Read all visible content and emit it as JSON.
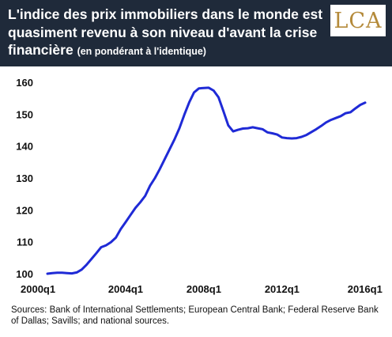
{
  "header": {
    "title": "L'indice des prix immobiliers dans le monde est quasiment revenu à son niveau d'avant la crise financière",
    "subtitle": "(en pondérant à l'identique)",
    "logo_text": "LCA",
    "background": "#1f2a3a"
  },
  "source_note": "Sources: Bank of International Settlements; European Central Bank; Federal Reserve Bank of Dallas; Savills; and national sources.",
  "chart_data": {
    "type": "line",
    "title": "",
    "xlabel": "",
    "ylabel": "",
    "ylim": [
      100,
      160
    ],
    "yticks": [
      100,
      110,
      120,
      130,
      140,
      150,
      160
    ],
    "xticks": [
      {
        "label": "2000q1",
        "index": 0
      },
      {
        "label": "2004q1",
        "index": 16
      },
      {
        "label": "2008q1",
        "index": 32
      },
      {
        "label": "2012q1",
        "index": 48
      },
      {
        "label": "2016q1",
        "index": 64
      }
    ],
    "grid": false,
    "legend": "none",
    "line_color": "#1f2ad6",
    "x_start": "2000q1",
    "series": [
      {
        "values": [
          100.0,
          100.2,
          100.3,
          100.3,
          100.2,
          100.1,
          100.4,
          101.3,
          102.8,
          104.6,
          106.4,
          108.3,
          108.9,
          109.9,
          111.3,
          114.0,
          116.2,
          118.4,
          120.6,
          122.4,
          124.4,
          127.6,
          130.0,
          132.8,
          135.9,
          139.0,
          142.1,
          145.6,
          149.8,
          153.7,
          156.8,
          158.1,
          158.2,
          158.3,
          157.4,
          155.3,
          151.0,
          146.5,
          144.6,
          145.1,
          145.5,
          145.6,
          145.9,
          145.6,
          145.3,
          144.3,
          144.0,
          143.6,
          142.7,
          142.5,
          142.4,
          142.5,
          142.9,
          143.5,
          144.4,
          145.3,
          146.3,
          147.4,
          148.2,
          148.8,
          149.4,
          150.3,
          150.6,
          151.8,
          152.9,
          153.6
        ]
      }
    ]
  }
}
